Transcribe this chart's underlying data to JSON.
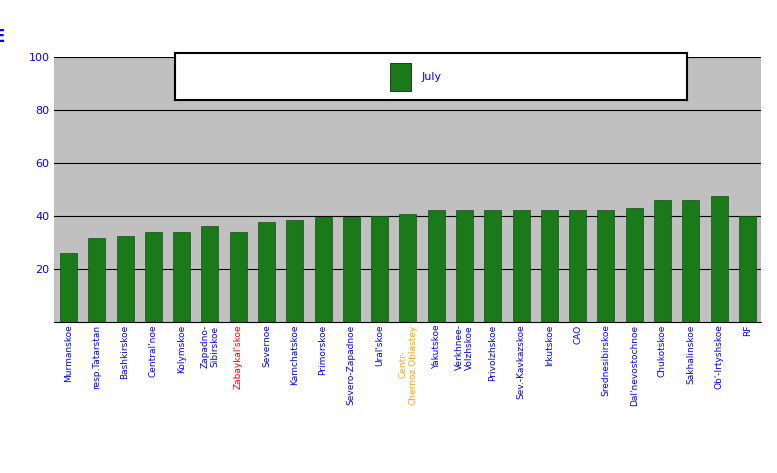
{
  "categories": [
    "Murmanskoe",
    "resp.Tatarstan",
    "Bashkirskoe",
    "Central'noe",
    "Kolymskoe",
    "Zapadno-\nSibirskoe",
    "Zabaykal'skoe",
    "Severnoe",
    "Kamchatskoe",
    "Primorskoe",
    "Severo-Zapadnoe",
    "Ural'skoe",
    "Centr-\nChernoz.Oblastey",
    "Yakutskoe",
    "Verkhnee-\nVolzhskoe",
    "Privolzhskoe",
    "Sev.-Kavkazskoe",
    "Irkutskoe",
    "CAO",
    "Srednesibirskoe",
    "Dal'nevostochnoe",
    "Chukotskoe",
    "Sakhalinskoe",
    "Ob'-Irtyshskoe",
    "RF"
  ],
  "values": [
    26,
    31.5,
    32.5,
    34,
    34,
    36,
    34,
    37.5,
    38.5,
    39.5,
    39.5,
    40,
    40.5,
    42,
    42,
    42,
    42,
    42,
    42,
    42,
    43,
    46,
    46,
    47.5,
    40
  ],
  "label_colors": [
    "blue",
    "blue",
    "blue",
    "blue",
    "blue",
    "blue",
    "red",
    "blue",
    "blue",
    "blue",
    "blue",
    "blue",
    "orange",
    "blue",
    "blue",
    "blue",
    "blue",
    "blue",
    "blue",
    "blue",
    "blue",
    "blue",
    "blue",
    "blue",
    "blue"
  ],
  "bar_color": "#1a7a1a",
  "bar_edge_color": "#145214",
  "figure_bg_color": "#ffffff",
  "plot_bg_color": "#c0c0c0",
  "legend_label": "July",
  "legend_color": "#1a7a1a",
  "ylabel": "E",
  "ylim": [
    0,
    100
  ],
  "yticks": [
    20,
    40,
    60,
    80,
    100
  ],
  "grid_color": "#000000",
  "tick_fontsize": 8,
  "ylabel_fontsize": 12
}
